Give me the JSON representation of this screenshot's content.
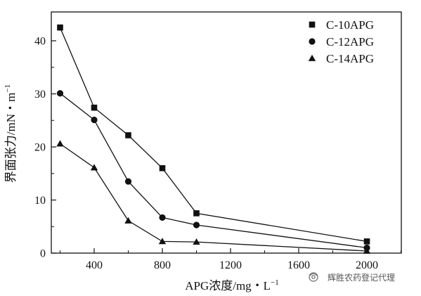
{
  "chart_data": {
    "type": "line",
    "xlabel": "APG浓度/mg・L",
    "xlabel_sup": "−1",
    "ylabel": "界面张力/mN・m",
    "ylabel_sup": "−1",
    "x_ticks": [
      400,
      800,
      1200,
      1600,
      2000
    ],
    "y_ticks": [
      0,
      10,
      20,
      30,
      40
    ],
    "xlim": [
      120,
      2200
    ],
    "ylim": [
      0,
      44
    ],
    "grid": false,
    "legend_position": "top-right",
    "series": [
      {
        "name": "C-10APG",
        "marker": "square",
        "x": [
          200,
          400,
          600,
          800,
          1000,
          2000
        ],
        "y": [
          42.5,
          27.4,
          22.2,
          16.0,
          7.5,
          2.2
        ]
      },
      {
        "name": "C-12APG",
        "marker": "circle",
        "x": [
          200,
          400,
          600,
          800,
          1000,
          2000
        ],
        "y": [
          30.1,
          25.1,
          13.5,
          6.7,
          5.3,
          1.0
        ]
      },
      {
        "name": "C-14APG",
        "marker": "triangle",
        "x": [
          200,
          400,
          600,
          800,
          1000,
          2000
        ],
        "y": [
          20.6,
          16.1,
          6.1,
          2.2,
          2.1,
          0.4
        ]
      }
    ]
  },
  "watermark": {
    "text": "辉胜农药登记代理",
    "icon": "wechat-official-account-icon"
  },
  "colors": {
    "line": "#111111",
    "marker": "#111111",
    "background": "#ffffff"
  }
}
